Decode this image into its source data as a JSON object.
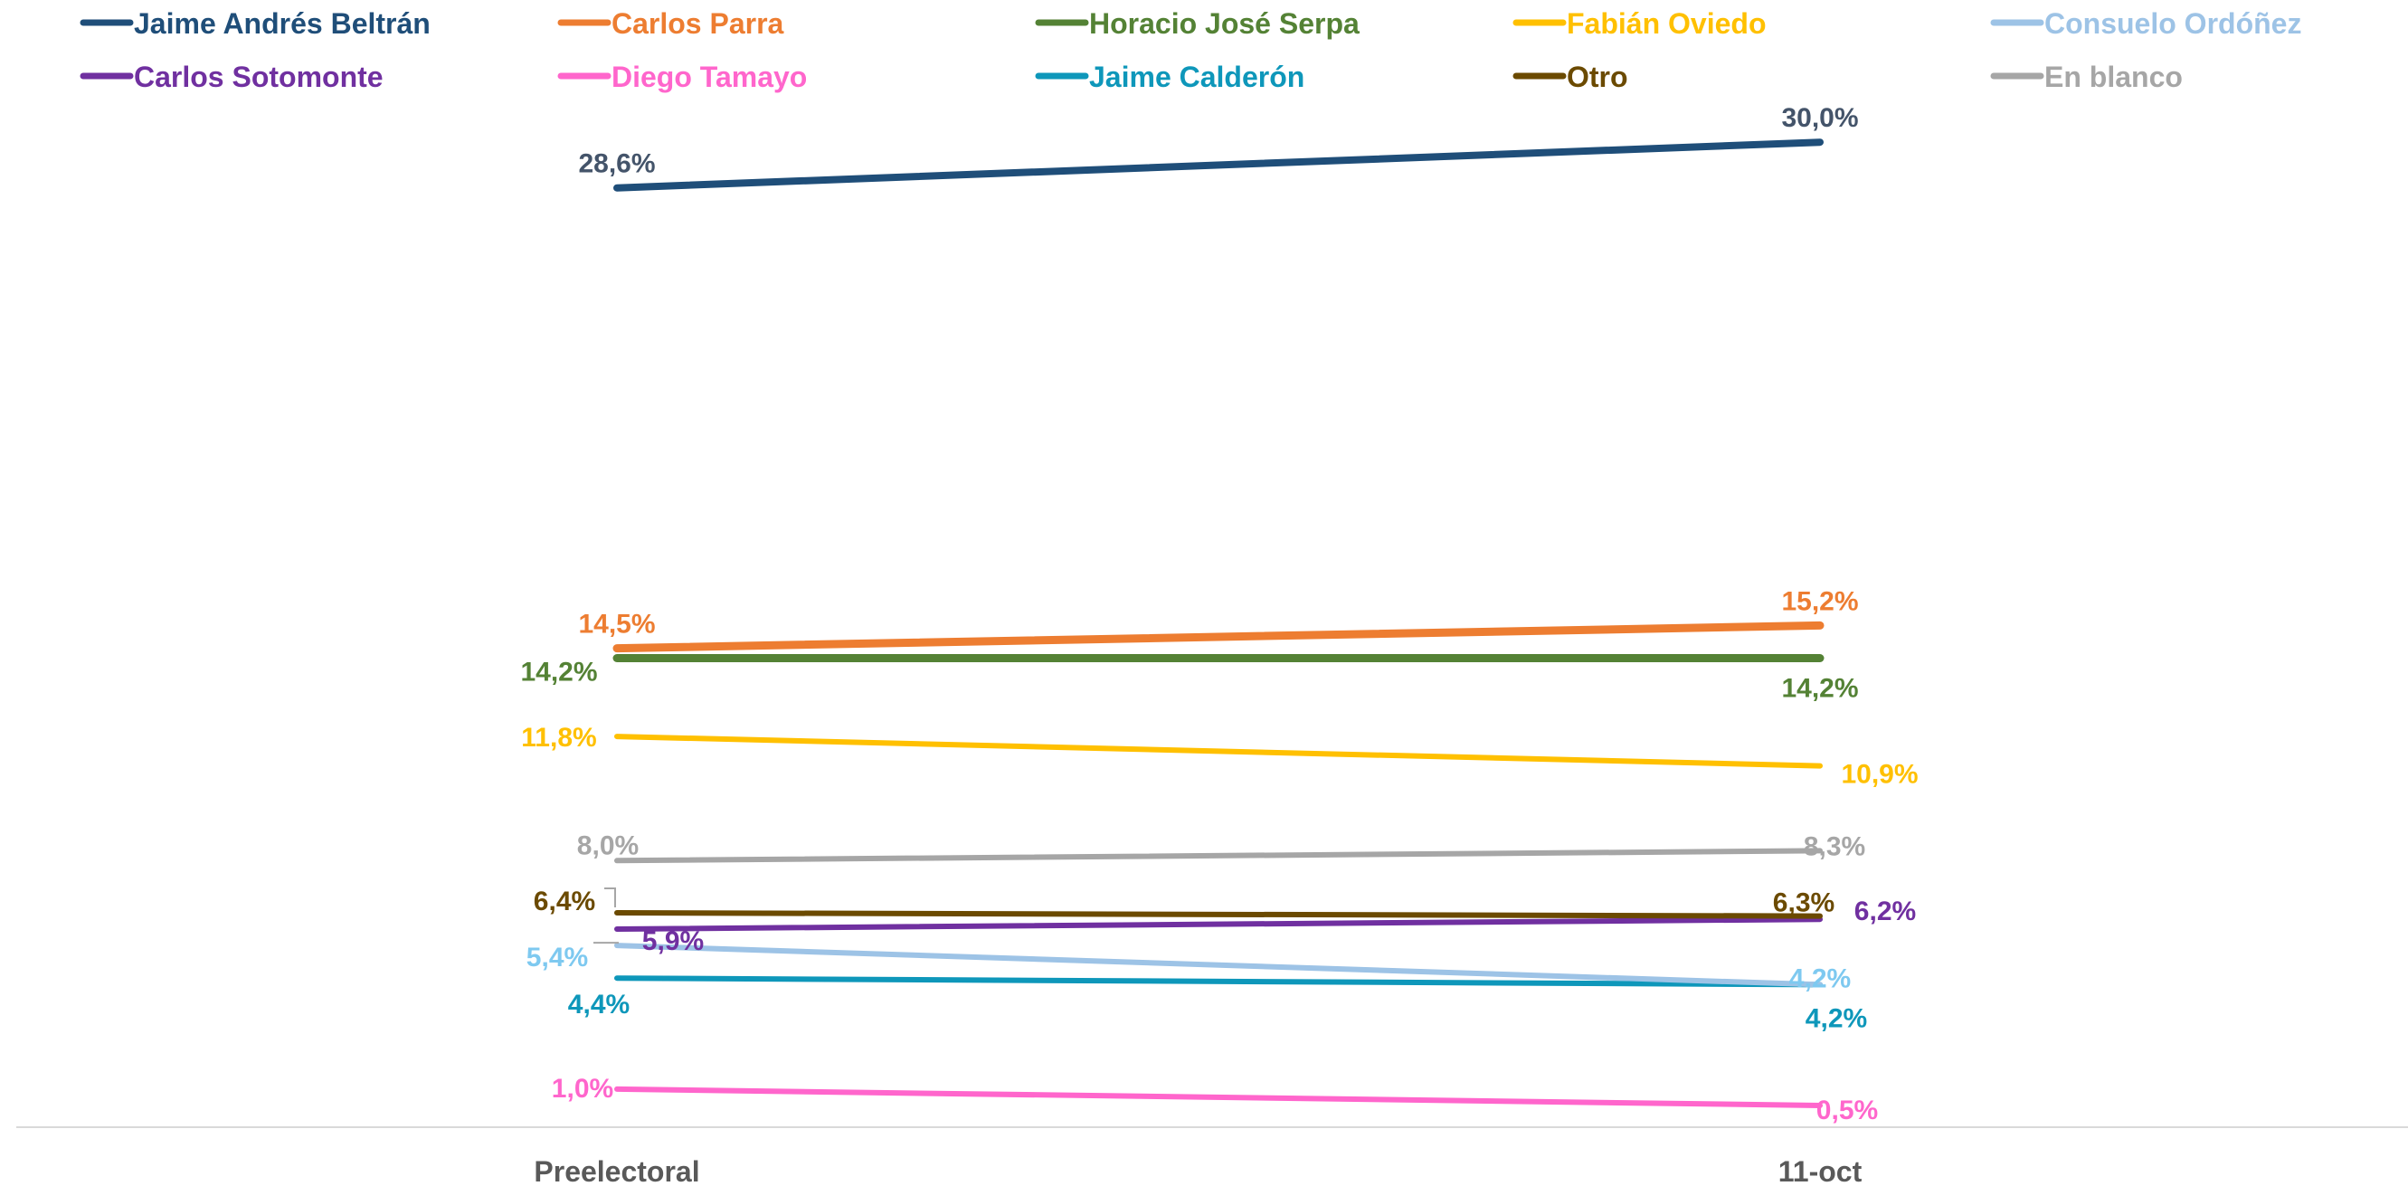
{
  "chart_data": {
    "type": "line",
    "categories": [
      "Preelectoral",
      "11-oct"
    ],
    "ylim": [
      0,
      32
    ],
    "grid": false,
    "legend_position": "top",
    "series": [
      {
        "name": "Jaime Andrés Beltrán",
        "color": "#1F4E79",
        "values": [
          28.6,
          30.0
        ],
        "labels": [
          "28,6%",
          "30,0%"
        ]
      },
      {
        "name": "Carlos Parra",
        "color": "#ED7D31",
        "values": [
          14.5,
          15.2
        ],
        "labels": [
          "14,5%",
          "15,2%"
        ]
      },
      {
        "name": "Horacio José Serpa",
        "color": "#548235",
        "values": [
          14.2,
          14.2
        ],
        "labels": [
          "14,2%",
          "14,2%"
        ]
      },
      {
        "name": "Fabián Oviedo",
        "color": "#FFC000",
        "values": [
          11.8,
          10.9
        ],
        "labels": [
          "11,8%",
          "10,9%"
        ]
      },
      {
        "name": "Consuelo Ordóñez",
        "color": "#9DC3E6",
        "values": [
          5.4,
          4.2
        ],
        "labels": [
          "5,4%",
          "4,2%"
        ]
      },
      {
        "name": "Carlos Sotomonte",
        "color": "#7030A0",
        "values": [
          5.9,
          6.2
        ],
        "labels": [
          "5,9%",
          "6,2%"
        ]
      },
      {
        "name": "Diego Tamayo",
        "color": "#FF66CC",
        "values": [
          1.0,
          0.5
        ],
        "labels": [
          "1,0%",
          "0,5%"
        ]
      },
      {
        "name": "Jaime Calderón",
        "color": "#0E97BA",
        "values": [
          4.4,
          4.2
        ],
        "labels": [
          "4,4%",
          "4,2%"
        ]
      },
      {
        "name": "Otro",
        "color": "#6B4A00",
        "values": [
          6.4,
          6.3
        ],
        "labels": [
          "6,4%",
          "6,3%"
        ]
      },
      {
        "name": "En blanco",
        "color": "#A6A6A6",
        "values": [
          8.0,
          8.3
        ],
        "labels": [
          "8,0%",
          "8,3%"
        ]
      }
    ]
  }
}
